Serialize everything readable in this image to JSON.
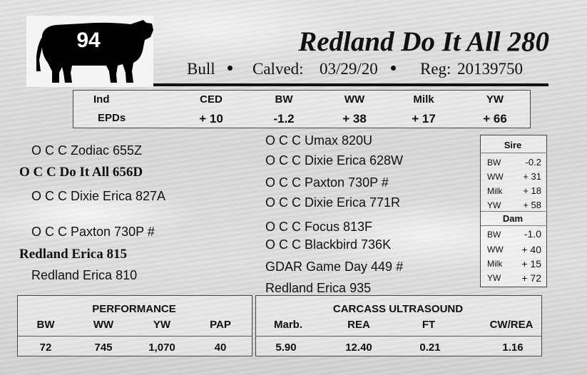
{
  "lot": {
    "number": "94"
  },
  "animal": {
    "name": "Redland Do It All 280",
    "sex": "Bull",
    "calved_label": "Calved:",
    "calved_date": "03/29/20",
    "reg_label": "Reg:",
    "reg_number": "20139750"
  },
  "epds": {
    "row_label_1": "Ind",
    "row_label_2": "EPDs",
    "headers": [
      "CED",
      "BW",
      "WW",
      "Milk",
      "YW"
    ],
    "values": [
      "+ 10",
      "-1.2",
      "+ 38",
      "+ 17",
      "+ 66"
    ]
  },
  "pedigree": {
    "left": [
      {
        "name": "O C C Zodiac 655Z"
      },
      {
        "name": "O C C Do It All 656D"
      },
      {
        "name": "O C C Dixie Erica 827A"
      },
      {
        "name": "O C C Paxton 730P #"
      },
      {
        "name": "Redland Erica 815"
      },
      {
        "name": "Redland Erica 810"
      }
    ],
    "right": [
      {
        "name": "O C C Umax 820U"
      },
      {
        "name": "O C C Dixie Erica 628W"
      },
      {
        "name": "O C C Paxton 730P #"
      },
      {
        "name": "O C C Dixie Erica 771R"
      },
      {
        "name": "O C C Focus 813F"
      },
      {
        "name": "O C C Blackbird 736K"
      },
      {
        "name": "GDAR Game Day 449 #"
      },
      {
        "name": "Redland Erica 935"
      }
    ]
  },
  "sire_dam": {
    "sire_label": "Sire",
    "dam_label": "Dam",
    "sire": [
      {
        "k": "BW",
        "v": "-0.2"
      },
      {
        "k": "WW",
        "v": "+ 31"
      },
      {
        "k": "Milk",
        "v": "+ 18"
      },
      {
        "k": "YW",
        "v": "+ 58"
      }
    ],
    "dam": [
      {
        "k": "BW",
        "v": "-1.0"
      },
      {
        "k": "WW",
        "v": "+ 40"
      },
      {
        "k": "Milk",
        "v": "+ 15"
      },
      {
        "k": "YW",
        "v": "+ 72"
      }
    ]
  },
  "performance": {
    "title": "PERFORMANCE",
    "headers": [
      "BW",
      "WW",
      "YW",
      "PAP"
    ],
    "values": [
      "72",
      "745",
      "1,070",
      "40"
    ]
  },
  "carcass": {
    "title": "CARCASS ULTRASOUND",
    "headers": [
      "Marb.",
      "REA",
      "FT",
      "CW/REA"
    ],
    "values": [
      "5.90",
      "12.40",
      "0.21",
      "1.16"
    ]
  }
}
